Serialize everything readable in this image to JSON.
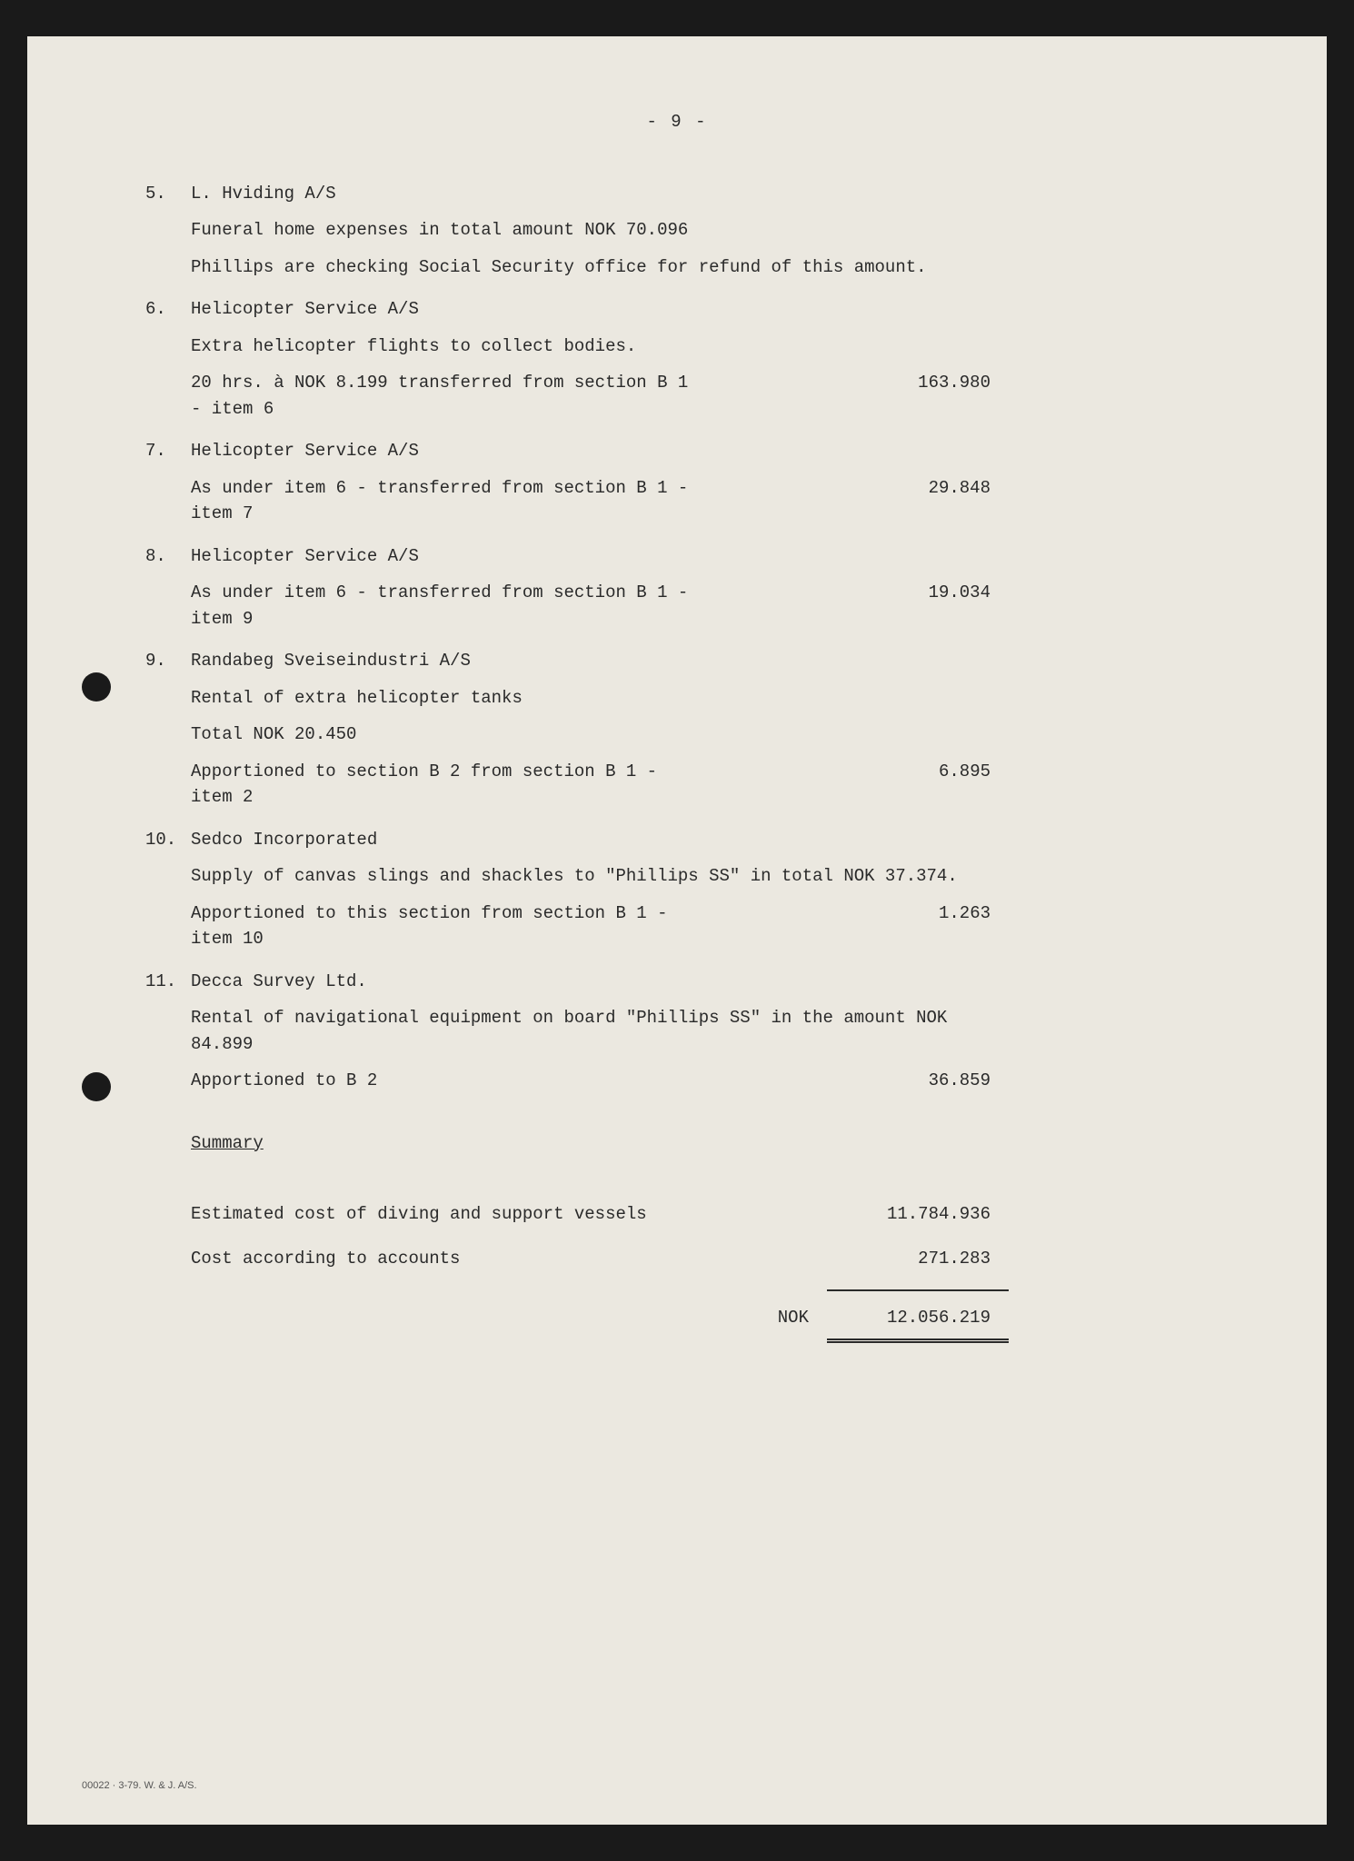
{
  "page_number": "- 9 -",
  "items": [
    {
      "num": "5.",
      "title": "L. Hviding A/S",
      "paragraphs": [
        "Funeral home expenses in total amount NOK 70.096",
        "Phillips are checking Social Security office for refund of this amount."
      ],
      "amount": ""
    },
    {
      "num": "6.",
      "title": "Helicopter Service A/S",
      "paragraphs": [
        "Extra helicopter flights to collect bodies."
      ],
      "final_text": "20 hrs. à NOK 8.199 transferred from section B 1 - item 6",
      "amount": "163.980"
    },
    {
      "num": "7.",
      "title": "Helicopter Service A/S",
      "paragraphs": [],
      "final_text": "As under item 6 - transferred from section B 1 - item 7",
      "amount": "29.848"
    },
    {
      "num": "8.",
      "title": "Helicopter Service A/S",
      "paragraphs": [],
      "final_text": "As under item 6 - transferred from section B 1 - item 9",
      "amount": "19.034"
    },
    {
      "num": "9.",
      "title": "Randabeg Sveiseindustri A/S",
      "paragraphs": [
        "Rental of extra helicopter tanks",
        "Total NOK 20.450"
      ],
      "final_text": "Apportioned to section B 2 from  section B 1 - item 2",
      "amount": "6.895"
    },
    {
      "num": "10.",
      "title": "Sedco Incorporated",
      "paragraphs": [
        "Supply of canvas slings and shackles to \"Phillips SS\" in total NOK 37.374."
      ],
      "final_text": "Apportioned to this section from section B 1 - item 10",
      "amount": "1.263"
    },
    {
      "num": "11.",
      "title": "Decca Survey Ltd.",
      "paragraphs": [
        "Rental of navigational equipment on board \"Phillips SS\" in the amount NOK 84.899"
      ],
      "final_text": "Apportioned to B 2",
      "amount": "36.859"
    }
  ],
  "summary": {
    "heading": "Summary",
    "rows": [
      {
        "label": "Estimated cost of diving and support vessels",
        "amount": "11.784.936"
      },
      {
        "label": "Cost according to accounts",
        "amount": "271.283"
      }
    ],
    "total_currency": "NOK",
    "total_amount": "12.056.219"
  },
  "footer": "00022 · 3-79. W. & J. A/S."
}
